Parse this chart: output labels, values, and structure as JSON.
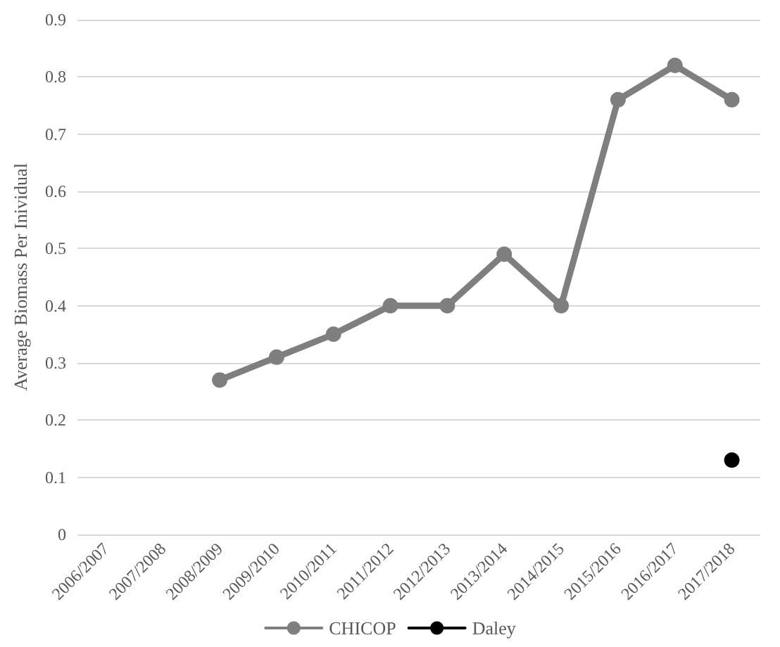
{
  "chart_data": {
    "type": "line",
    "ylabel": "Average Biomass Per Inividual",
    "categories": [
      "2006/2007",
      "2007/2008",
      "2008/2009",
      "2009/2010",
      "2010/2011",
      "2011/2012",
      "2012/2013",
      "2013/2014",
      "2014/2015",
      "2015/2016",
      "2016/2017",
      "2017/2018"
    ],
    "series": [
      {
        "name": "CHICOP",
        "color": "#7f7f7f",
        "values": [
          null,
          null,
          0.27,
          0.31,
          0.35,
          0.4,
          0.4,
          0.49,
          0.4,
          0.76,
          0.82,
          0.76
        ]
      },
      {
        "name": "Daley",
        "color": "#000000",
        "values": [
          null,
          null,
          null,
          null,
          null,
          null,
          null,
          null,
          null,
          null,
          null,
          0.13
        ]
      }
    ],
    "ylim": [
      0,
      0.9
    ],
    "yticks": [
      0,
      0.1,
      0.2,
      0.3,
      0.4,
      0.5,
      0.6,
      0.7,
      0.8,
      0.9
    ],
    "grid": "y",
    "legend": "bottom",
    "marker": "circle",
    "line_style": "solid"
  }
}
